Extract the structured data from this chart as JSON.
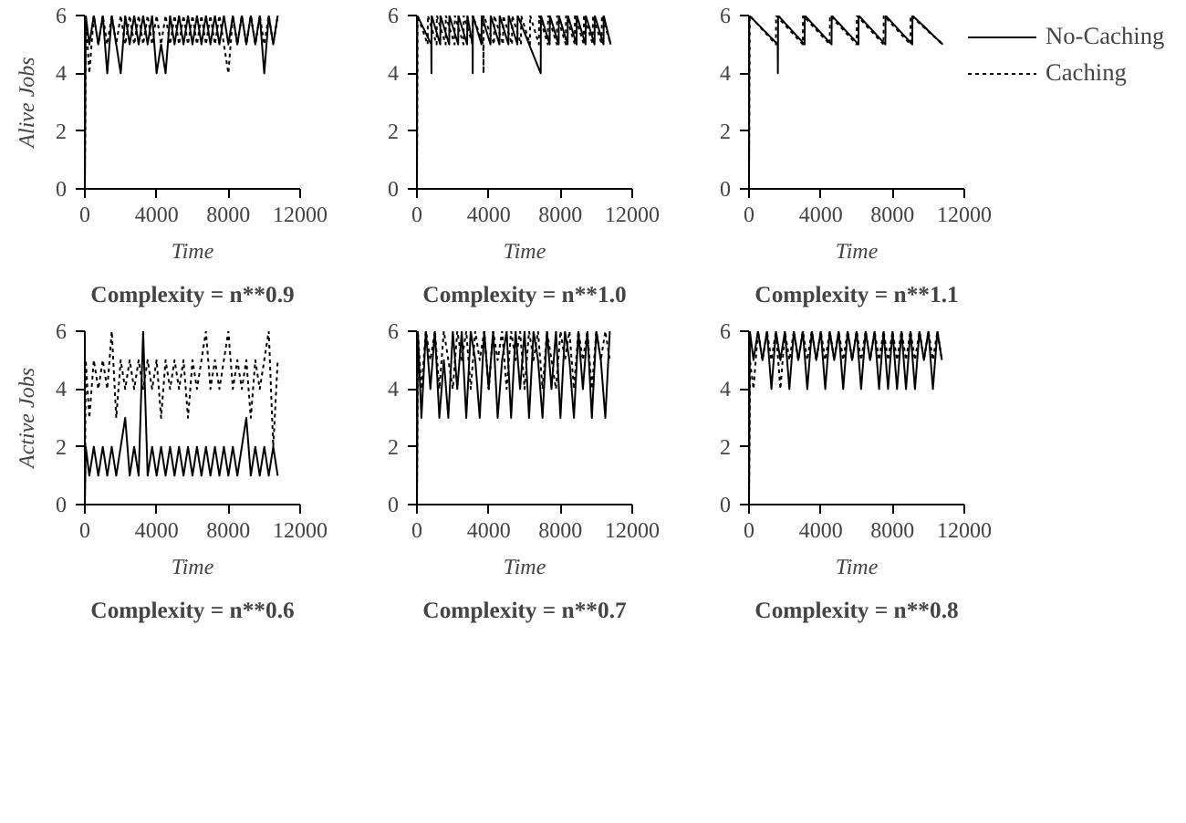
{
  "chart_data": [
    {
      "type": "line",
      "title": "Complexity = n**0.9",
      "xlabel": "Time",
      "ylabel": "Alive Jobs",
      "xlim": [
        0,
        12000
      ],
      "xticks": [
        0,
        4000,
        8000,
        12000
      ],
      "ylim": [
        0,
        6
      ],
      "yticks": [
        0,
        2,
        4,
        6
      ],
      "grid": false,
      "legend": false,
      "x": [
        0,
        50,
        250,
        500,
        750,
        1000,
        1250,
        1500,
        1750,
        2000,
        2250,
        2500,
        2750,
        3000,
        3250,
        3500,
        3750,
        4000,
        4250,
        4500,
        4750,
        5000,
        5250,
        5500,
        5750,
        6000,
        6250,
        6500,
        6750,
        7000,
        7250,
        7500,
        7750,
        8000,
        8250,
        8500,
        8750,
        9000,
        9250,
        9500,
        9750,
        10000,
        10250,
        10500,
        10750
      ],
      "series": [
        {
          "color": "#000000",
          "line_style": "solid",
          "values": [
            0,
            6,
            5,
            6,
            5,
            6,
            4,
            6,
            5,
            4,
            6,
            5,
            6,
            5,
            6,
            5,
            6,
            4,
            5,
            4,
            6,
            5,
            6,
            5,
            6,
            5,
            6,
            5,
            6,
            5,
            6,
            5,
            6,
            5,
            6,
            5,
            6,
            5,
            6,
            5,
            6,
            4,
            6,
            5,
            6
          ]
        },
        {
          "color": "#000000",
          "line_style": "dotted",
          "values": [
            0,
            6,
            4,
            6,
            5,
            6,
            5,
            6,
            5,
            6,
            5,
            6,
            5,
            6,
            5,
            6,
            5,
            6,
            5,
            6,
            5,
            6,
            5,
            6,
            5,
            6,
            5,
            6,
            5,
            6,
            5,
            6,
            5,
            4,
            6,
            5,
            6,
            5,
            6,
            5,
            6,
            5,
            6,
            5,
            6
          ]
        }
      ]
    },
    {
      "type": "line",
      "title": "Complexity = n**1.0",
      "xlabel": "Time",
      "xlim": [
        0,
        12000
      ],
      "xticks": [
        0,
        4000,
        8000,
        12000
      ],
      "ylim": [
        0,
        6
      ],
      "yticks": [
        0,
        2,
        4,
        6
      ],
      "grid": false,
      "legend": false,
      "series": [
        {
          "color": "#000000",
          "line_style": "solid",
          "x": [
            0,
            20,
            800,
            810,
            820,
            1300,
            1310,
            1800,
            1810,
            2300,
            2310,
            2800,
            2810,
            3100,
            3110,
            3120,
            3600,
            3610,
            4100,
            4110,
            4600,
            4610,
            5100,
            5110,
            5600,
            5610,
            6900,
            6910,
            7400,
            7410,
            7900,
            7910,
            8400,
            8410,
            8900,
            8910,
            9400,
            9410,
            9900,
            9910,
            10400,
            10410,
            10800
          ],
          "values": [
            0,
            6,
            5,
            4,
            6,
            5,
            6,
            5,
            6,
            5,
            6,
            5,
            6,
            5,
            4,
            6,
            5,
            6,
            5,
            6,
            5,
            6,
            5,
            6,
            5,
            6,
            4,
            6,
            5,
            6,
            5,
            6,
            5,
            6,
            5,
            6,
            5,
            6,
            5,
            6,
            5,
            6,
            5
          ]
        },
        {
          "color": "#000000",
          "line_style": "dotted",
          "x": [
            0,
            30,
            600,
            610,
            1100,
            1110,
            1600,
            1610,
            2100,
            2110,
            2600,
            2610,
            3100,
            3110,
            3700,
            3710,
            3720,
            4300,
            4310,
            4800,
            4810,
            5300,
            5310,
            5800,
            5810,
            6300,
            6310,
            6800,
            6810,
            7300,
            7310,
            7800,
            7810,
            8300,
            8310,
            8800,
            8810,
            9300,
            9310,
            9800,
            9810,
            10300,
            10310,
            10800
          ],
          "values": [
            0,
            6,
            5,
            6,
            5,
            6,
            5,
            6,
            5,
            6,
            5,
            6,
            5,
            6,
            5,
            4,
            6,
            5,
            6,
            5,
            6,
            5,
            6,
            5,
            6,
            5,
            6,
            5,
            6,
            5,
            6,
            5,
            6,
            5,
            6,
            5,
            6,
            5,
            6,
            5,
            6,
            5,
            6,
            5
          ]
        }
      ]
    },
    {
      "type": "line",
      "title": "Complexity = n**1.1",
      "xlabel": "Time",
      "xlim": [
        0,
        12000
      ],
      "xticks": [
        0,
        4000,
        8000,
        12000
      ],
      "ylim": [
        0,
        6
      ],
      "yticks": [
        0,
        2,
        4,
        6
      ],
      "grid": false,
      "legend": "right",
      "series": [
        {
          "name": "No-Caching",
          "color": "#000000",
          "line_style": "solid",
          "x": [
            0,
            20,
            1600,
            1610,
            1620,
            3100,
            3110,
            4600,
            4610,
            6100,
            6110,
            7600,
            7610,
            9100,
            9110,
            10800
          ],
          "values": [
            0,
            6,
            5,
            4,
            6,
            5,
            6,
            5,
            6,
            5,
            6,
            5,
            6,
            5,
            6,
            5
          ]
        },
        {
          "name": "Caching",
          "color": "#000000",
          "line_style": "dotted",
          "x": [
            0,
            30,
            1500,
            1510,
            3000,
            3010,
            4500,
            4510,
            6000,
            6010,
            7500,
            7510,
            9000,
            9010,
            10800
          ],
          "values": [
            0,
            6,
            5,
            6,
            5,
            6,
            5,
            6,
            5,
            6,
            5,
            6,
            5,
            6,
            5
          ]
        }
      ]
    },
    {
      "type": "line",
      "title": "Complexity = n**0.6",
      "xlabel": "Time",
      "ylabel": "Active Jobs",
      "xlim": [
        0,
        12000
      ],
      "xticks": [
        0,
        4000,
        8000,
        12000
      ],
      "ylim": [
        0,
        6
      ],
      "yticks": [
        0,
        2,
        4,
        6
      ],
      "grid": false,
      "legend": false,
      "x": [
        0,
        50,
        250,
        500,
        750,
        1000,
        1250,
        1500,
        1750,
        2000,
        2250,
        2500,
        2750,
        3000,
        3250,
        3500,
        3750,
        4000,
        4250,
        4500,
        4750,
        5000,
        5250,
        5500,
        5750,
        6000,
        6250,
        6500,
        6750,
        7000,
        7250,
        7500,
        7750,
        8000,
        8250,
        8500,
        8750,
        9000,
        9250,
        9500,
        9750,
        10000,
        10250,
        10500,
        10750
      ],
      "series": [
        {
          "color": "#000000",
          "line_style": "solid",
          "values": [
            0,
            2,
            1,
            2,
            1,
            2,
            1,
            2,
            1,
            2,
            3,
            1,
            2,
            1,
            6,
            1,
            2,
            1,
            2,
            1,
            2,
            1,
            2,
            1,
            2,
            1,
            2,
            1,
            2,
            1,
            2,
            1,
            2,
            1,
            2,
            1,
            2,
            3,
            1,
            2,
            1,
            2,
            1,
            2,
            1
          ]
        },
        {
          "color": "#000000",
          "line_style": "dotted",
          "values": [
            0,
            5,
            3,
            5,
            4,
            5,
            4,
            6,
            3,
            5,
            4,
            5,
            4,
            5,
            4,
            5,
            4,
            5,
            3,
            5,
            4,
            5,
            4,
            5,
            3,
            5,
            4,
            5,
            6,
            4,
            5,
            4,
            5,
            6,
            4,
            5,
            4,
            5,
            3,
            5,
            4,
            5,
            6,
            2,
            5
          ]
        }
      ]
    },
    {
      "type": "line",
      "title": "Complexity = n**0.7",
      "xlabel": "Time",
      "xlim": [
        0,
        12000
      ],
      "xticks": [
        0,
        4000,
        8000,
        12000
      ],
      "ylim": [
        0,
        6
      ],
      "yticks": [
        0,
        2,
        4,
        6
      ],
      "grid": false,
      "legend": false,
      "x": [
        0,
        50,
        250,
        500,
        750,
        1000,
        1250,
        1500,
        1750,
        2000,
        2250,
        2500,
        2750,
        3000,
        3250,
        3500,
        3750,
        4000,
        4250,
        4500,
        4750,
        5000,
        5250,
        5500,
        5750,
        6000,
        6250,
        6500,
        6750,
        7000,
        7250,
        7500,
        7750,
        8000,
        8250,
        8500,
        8750,
        9000,
        9250,
        9500,
        9750,
        10000,
        10250,
        10500,
        10750
      ],
      "series": [
        {
          "color": "#000000",
          "line_style": "solid",
          "values": [
            0,
            6,
            3,
            6,
            4,
            6,
            3,
            5,
            3,
            6,
            4,
            6,
            3,
            6,
            5,
            3,
            6,
            4,
            6,
            3,
            5,
            6,
            3,
            6,
            4,
            6,
            3,
            6,
            5,
            3,
            6,
            4,
            6,
            3,
            6,
            5,
            3,
            6,
            4,
            6,
            3,
            6,
            5,
            3,
            6
          ]
        },
        {
          "color": "#000000",
          "line_style": "dotted",
          "values": [
            0,
            6,
            4,
            6,
            5,
            6,
            4,
            6,
            5,
            4,
            6,
            5,
            6,
            4,
            6,
            5,
            6,
            4,
            6,
            5,
            6,
            4,
            6,
            5,
            6,
            4,
            6,
            5,
            6,
            4,
            6,
            5,
            4,
            6,
            5,
            6,
            4,
            6,
            5,
            6,
            4,
            6,
            5,
            6,
            5
          ]
        }
      ]
    },
    {
      "type": "line",
      "title": "Complexity = n**0.8",
      "xlabel": "Time",
      "xlim": [
        0,
        12000
      ],
      "xticks": [
        0,
        4000,
        8000,
        12000
      ],
      "ylim": [
        0,
        6
      ],
      "yticks": [
        0,
        2,
        4,
        6
      ],
      "grid": false,
      "legend": false,
      "x": [
        0,
        50,
        250,
        500,
        750,
        1000,
        1250,
        1500,
        1750,
        2000,
        2250,
        2500,
        2750,
        3000,
        3250,
        3500,
        3750,
        4000,
        4250,
        4500,
        4750,
        5000,
        5250,
        5500,
        5750,
        6000,
        6250,
        6500,
        6750,
        7000,
        7250,
        7500,
        7750,
        8000,
        8250,
        8500,
        8750,
        9000,
        9250,
        9500,
        9750,
        10000,
        10250,
        10500,
        10750
      ],
      "series": [
        {
          "color": "#000000",
          "line_style": "solid",
          "values": [
            0,
            6,
            5,
            6,
            5,
            6,
            4,
            6,
            5,
            6,
            4,
            6,
            5,
            6,
            4,
            6,
            5,
            6,
            4,
            6,
            5,
            6,
            4,
            6,
            5,
            6,
            4,
            6,
            5,
            6,
            4,
            6,
            4,
            6,
            4,
            6,
            4,
            6,
            4,
            6,
            5,
            6,
            4,
            6,
            5
          ]
        },
        {
          "color": "#000000",
          "line_style": "dotted",
          "values": [
            0,
            5,
            4,
            6,
            5,
            6,
            5,
            6,
            4,
            6,
            5,
            6,
            5,
            6,
            5,
            6,
            5,
            6,
            5,
            6,
            5,
            6,
            5,
            6,
            5,
            6,
            5,
            6,
            5,
            6,
            5,
            6,
            5,
            6,
            5,
            6,
            5,
            6,
            5,
            6,
            5,
            6,
            5,
            6,
            5
          ]
        }
      ]
    }
  ]
}
